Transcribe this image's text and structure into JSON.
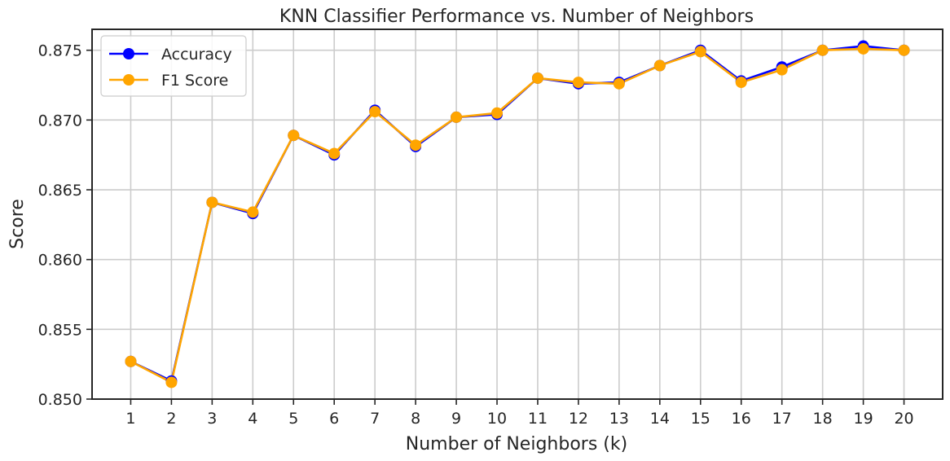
{
  "chart_data": {
    "type": "line",
    "title": "KNN Classifier Performance vs. Number of Neighbors",
    "xlabel": "Number of Neighbors (k)",
    "ylabel": "Score",
    "x": [
      1,
      2,
      3,
      4,
      5,
      6,
      7,
      8,
      9,
      10,
      11,
      12,
      13,
      14,
      15,
      16,
      17,
      18,
      19,
      20
    ],
    "x_ticks": [
      "1",
      "2",
      "3",
      "4",
      "5",
      "6",
      "7",
      "8",
      "9",
      "10",
      "11",
      "12",
      "13",
      "14",
      "15",
      "16",
      "17",
      "18",
      "19",
      "20"
    ],
    "ylim": [
      0.85,
      0.8765
    ],
    "y_ticks": [
      0.85,
      0.855,
      0.86,
      0.865,
      0.87,
      0.875
    ],
    "y_tick_labels": [
      "0.850",
      "0.855",
      "0.860",
      "0.865",
      "0.870",
      "0.875"
    ],
    "grid": true,
    "legend_position": "top-left",
    "series": [
      {
        "name": "Accuracy",
        "color": "#0000ff",
        "values": [
          0.8527,
          0.8513,
          0.8641,
          0.8633,
          0.8689,
          0.8675,
          0.8707,
          0.8681,
          0.8702,
          0.8704,
          0.873,
          0.8726,
          0.8727,
          0.8739,
          0.875,
          0.8728,
          0.8738,
          0.875,
          0.8753,
          0.875
        ]
      },
      {
        "name": "F1 Score",
        "color": "#ffa500",
        "values": [
          0.8527,
          0.8512,
          0.8641,
          0.8634,
          0.8689,
          0.8676,
          0.8706,
          0.8682,
          0.8702,
          0.8705,
          0.873,
          0.8727,
          0.8726,
          0.8739,
          0.8749,
          0.8727,
          0.8736,
          0.875,
          0.8751,
          0.875
        ]
      }
    ]
  }
}
